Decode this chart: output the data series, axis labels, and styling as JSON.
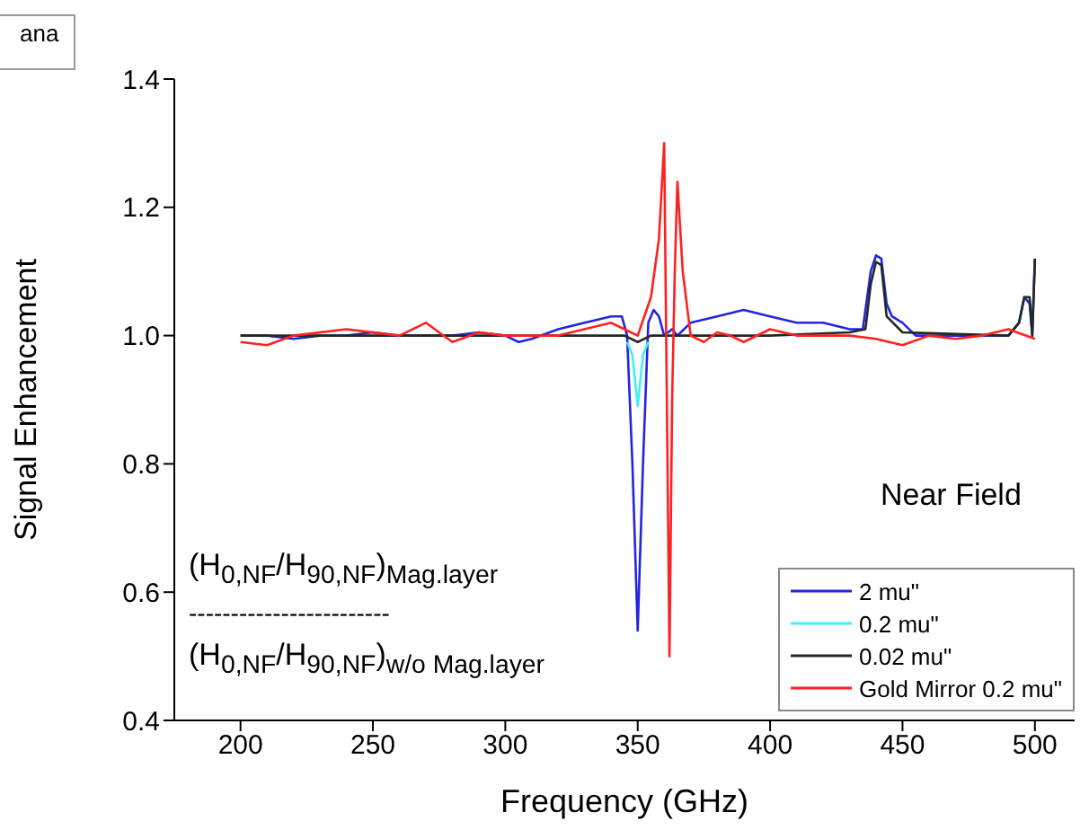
{
  "chart_data": {
    "type": "line",
    "xlabel": "Frequency (GHz)",
    "ylabel": "Signal Enhancement",
    "xlim": [
      175,
      515
    ],
    "xticks": [
      200,
      250,
      300,
      350,
      400,
      450,
      500
    ],
    "ylim": [
      0.4,
      1.4
    ],
    "yticks": [
      0.4,
      0.6,
      0.8,
      {
        "value": 1,
        "label": "1.0"
      },
      1.2,
      1.4
    ],
    "grid": false,
    "legend": "bottom right",
    "marker": "none",
    "line_style": "solid",
    "annotations": [
      "Near Field",
      "(H$_{0,NF}$/H$_{90,NF}$)$_{Mag.layer}$",
      "------------------------",
      "(H$_{0,NF}$/H$_{90,NF}$)$_{w/o Mag.layer}$",
      "ana"
    ],
    "series": [
      {
        "name": "2 mu\"",
        "color": "#2424e0",
        "x": [
          200,
          210,
          220,
          230,
          240,
          250,
          260,
          270,
          280,
          290,
          300,
          305,
          310,
          320,
          330,
          340,
          344,
          346,
          348,
          350,
          352,
          354,
          356,
          358,
          360,
          363,
          365,
          370,
          380,
          390,
          400,
          410,
          420,
          430,
          435,
          438,
          440,
          442,
          444,
          446,
          450,
          455,
          470,
          480,
          490,
          494,
          496,
          498,
          499,
          500
        ],
        "values": [
          1.0,
          1.0,
          0.995,
          1.0,
          1.0,
          1.005,
          1.0,
          1.0,
          1.0,
          1.005,
          1.0,
          0.99,
          0.995,
          1.01,
          1.02,
          1.03,
          1.03,
          1.0,
          0.8,
          0.54,
          0.8,
          1.02,
          1.04,
          1.03,
          1.0,
          1.01,
          1.0,
          1.02,
          1.03,
          1.04,
          1.03,
          1.02,
          1.02,
          1.01,
          1.01,
          1.1,
          1.125,
          1.12,
          1.05,
          1.03,
          1.02,
          1.0,
          1.0,
          1.0,
          1.0,
          1.02,
          1.06,
          1.05,
          1.0,
          1.12
        ]
      },
      {
        "name": "0.2 mu\"",
        "color": "#40f0f0",
        "x": [
          346,
          348,
          350,
          352,
          354
        ],
        "values": [
          0.99,
          0.97,
          0.89,
          0.97,
          0.99
        ]
      },
      {
        "name": "0.02 mu\"",
        "color": "#202a20",
        "x": [
          200,
          250,
          300,
          345,
          350,
          355,
          400,
          430,
          436,
          438,
          440,
          442,
          444,
          450,
          490,
          494,
          496,
          498,
          499,
          500
        ],
        "values": [
          1.0,
          1.0,
          1.0,
          1.0,
          0.99,
          1.0,
          1.0,
          1.005,
          1.01,
          1.08,
          1.115,
          1.11,
          1.03,
          1.005,
          1.0,
          1.02,
          1.06,
          1.06,
          1.0,
          1.12
        ]
      },
      {
        "name": "Gold Mirror 0.2 mu\"",
        "color": "#ff2020",
        "x": [
          200,
          210,
          220,
          240,
          260,
          270,
          280,
          290,
          300,
          320,
          340,
          345,
          350,
          355,
          358,
          360,
          361,
          362,
          363,
          364,
          365,
          367,
          370,
          375,
          380,
          385,
          390,
          400,
          410,
          430,
          440,
          450,
          460,
          470,
          480,
          490,
          500
        ],
        "values": [
          0.99,
          0.985,
          1.0,
          1.01,
          1.0,
          1.02,
          0.99,
          1.005,
          1.0,
          1.0,
          1.02,
          1.01,
          1.0,
          1.06,
          1.15,
          1.3,
          0.9,
          0.5,
          0.9,
          1.1,
          1.24,
          1.1,
          1.0,
          0.99,
          1.005,
          1.0,
          0.99,
          1.01,
          1.0,
          1.0,
          0.995,
          0.985,
          1.0,
          0.995,
          1.0,
          1.01,
          0.995
        ]
      }
    ]
  }
}
